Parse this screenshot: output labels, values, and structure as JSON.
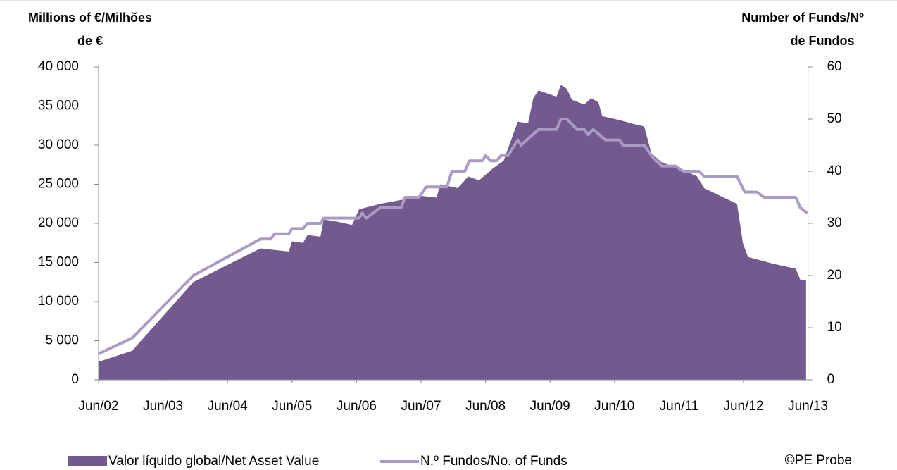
{
  "chart_data": {
    "type": "area_line",
    "y_label": [
      "Millions of €/Milhões",
      "de €"
    ],
    "y2_label": [
      "Number of Funds/Nº",
      "de Fundos"
    ],
    "source": "©PE Probe",
    "xlim": [
      2002.5,
      2013.5
    ],
    "xticks": [
      {
        "value": 2002.5,
        "label": "Jun/02"
      },
      {
        "value": 2003.5,
        "label": "Jun/03"
      },
      {
        "value": 2004.5,
        "label": "Jun/04"
      },
      {
        "value": 2005.5,
        "label": "Jun/05"
      },
      {
        "value": 2006.5,
        "label": "Jun/06"
      },
      {
        "value": 2007.5,
        "label": "Jun/07"
      },
      {
        "value": 2008.5,
        "label": "Jun/08"
      },
      {
        "value": 2009.5,
        "label": "Jun/09"
      },
      {
        "value": 2010.5,
        "label": "Jun/10"
      },
      {
        "value": 2011.5,
        "label": "Jun/11"
      },
      {
        "value": 2012.5,
        "label": "Jun/12"
      },
      {
        "value": 2013.5,
        "label": "Jun/13"
      }
    ],
    "ylim": [
      0,
      40000
    ],
    "yticks": [
      0,
      {
        "value": 5000,
        "label": "5 000"
      },
      {
        "value": 10000,
        "label": "10 000"
      },
      {
        "value": 15000,
        "label": "15 000"
      },
      {
        "value": 20000,
        "label": "20 000"
      },
      {
        "value": 25000,
        "label": "25 000"
      },
      {
        "value": 30000,
        "label": "30 000"
      },
      {
        "value": 35000,
        "label": "35 000"
      },
      {
        "value": 40000,
        "label": "40 000"
      }
    ],
    "y2lim": [
      0,
      60
    ],
    "y2ticks": [
      0,
      10,
      20,
      30,
      40,
      50,
      60
    ],
    "series": [
      {
        "name": "Valor líquido global/Net Asset Value",
        "kind": "area",
        "color": "#725a8f",
        "x": [
          2002.5,
          2003.02,
          2003.97,
          2005.01,
          2005.45,
          2005.5,
          2005.67,
          2005.74,
          2005.94,
          2005.99,
          2006.21,
          2006.43,
          2006.54,
          2006.87,
          2007.19,
          2007.52,
          2007.74,
          2007.8,
          2008.07,
          2008.23,
          2008.4,
          2008.61,
          2008.78,
          2009.0,
          2009.16,
          2009.24,
          2009.32,
          2009.6,
          2009.67,
          2009.76,
          2009.84,
          2010.03,
          2010.14,
          2010.25,
          2010.31,
          2010.58,
          2010.8,
          2010.96,
          2011.07,
          2011.23,
          2011.51,
          2011.78,
          2011.89,
          2012.22,
          2012.4,
          2012.49,
          2012.57,
          2012.98,
          2013.31,
          2013.38,
          2013.47
        ],
        "values": [
          2300,
          3700,
          12500,
          16800,
          16400,
          17700,
          17500,
          18500,
          18300,
          20500,
          20200,
          19800,
          21800,
          22500,
          23000,
          23500,
          23300,
          25000,
          24500,
          26000,
          25500,
          27000,
          28000,
          33000,
          32800,
          36000,
          37000,
          36200,
          37700,
          37200,
          35800,
          35200,
          36000,
          35500,
          33700,
          33200,
          32700,
          32400,
          29000,
          27800,
          27000,
          26000,
          24500,
          23200,
          22500,
          17500,
          15700,
          14800,
          14200,
          12800,
          12700
        ]
      },
      {
        "name": "N.º Fundos/No. of Funds",
        "kind": "line",
        "axis": "y2",
        "color": "#a99bc4",
        "x": [
          2002.5,
          2003.02,
          2003.97,
          2005.01,
          2005.17,
          2005.23,
          2005.45,
          2005.5,
          2005.67,
          2005.74,
          2005.94,
          2005.99,
          2006.54,
          2006.59,
          2006.65,
          2006.76,
          2006.87,
          2007.19,
          2007.25,
          2007.47,
          2007.58,
          2007.9,
          2007.98,
          2008.18,
          2008.25,
          2008.45,
          2008.5,
          2008.58,
          2008.67,
          2008.74,
          2008.85,
          2009.0,
          2009.05,
          2009.32,
          2009.6,
          2009.67,
          2009.76,
          2009.92,
          2010.03,
          2010.09,
          2010.17,
          2010.36,
          2010.58,
          2010.63,
          2010.96,
          2011.07,
          2011.23,
          2011.45,
          2011.56,
          2011.81,
          2011.89,
          2012.4,
          2012.52,
          2012.71,
          2012.82,
          2013.31,
          2013.38,
          2013.49
        ],
        "values": [
          5,
          8,
          20,
          27,
          27,
          28,
          28,
          29,
          29,
          30,
          30,
          31,
          31,
          32,
          31,
          32,
          33,
          33,
          35,
          35,
          37,
          37,
          40,
          40,
          42,
          42,
          43,
          42,
          42,
          43,
          43,
          46,
          45,
          48,
          48,
          50,
          50,
          48,
          48,
          47,
          48,
          46,
          46,
          45,
          45,
          43,
          41,
          41,
          40,
          40,
          39,
          39,
          36,
          36,
          35,
          35,
          33,
          32
        ]
      }
    ]
  }
}
